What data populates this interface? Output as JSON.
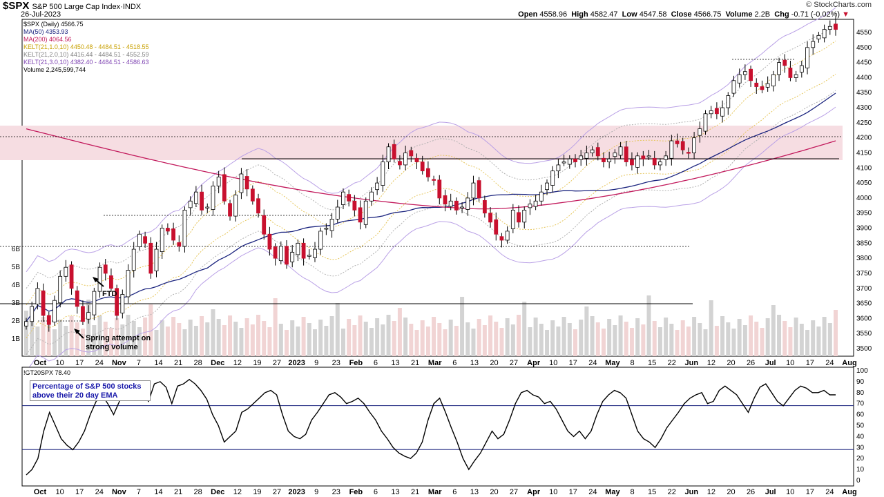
{
  "header": {
    "symbol": "$SPX",
    "name": "S&P 500 Large Cap Index",
    "exchange": "INDX",
    "date": "26-Jul-2023",
    "open_label": "Open",
    "open": "4558.96",
    "high_label": "High",
    "high": "4582.47",
    "low_label": "Low",
    "low": "4547.58",
    "close_label": "Close",
    "close": "4566.75",
    "volume_label": "Volume",
    "volume": "2.2B",
    "chg_label": "Chg",
    "chg": "-0.71 (-0.02%)",
    "credit": "© StockCharts.com"
  },
  "legend": [
    {
      "text": "$SPX (Daily) 4566.75",
      "color": "#000000"
    },
    {
      "text": "MA(50) 4353.93",
      "color": "#1a237e"
    },
    {
      "text": "MA(200) 4064.56",
      "color": "#c2185b"
    },
    {
      "text": "KELT(21,1.0,10) 4450.48 - 4484.51 - 4518.55",
      "color": "#c8a000"
    },
    {
      "text": "KELT(21,2.0,10) 4416.44 - 4484.51 - 4552.59",
      "color": "#808080"
    },
    {
      "text": "KELT(21,3.0,10) 4382.40 - 4484.51 - 4586.63",
      "color": "#7b3fb0"
    },
    {
      "text": "Volume 2,245,599,744",
      "color": "#000000"
    }
  ],
  "indicator_legend": "!GT20SPX 78.40",
  "indicator_box": "Percentage of S&P 500 stocks above their 20 day EMA",
  "annotations": {
    "ftd": "FTD",
    "spring": "Spring attempt on strong volume"
  },
  "colors": {
    "up": "#ffffff",
    "down": "#c8102e",
    "ma50": "#1a237e",
    "ma200": "#c2185b",
    "kelt1": "#e6c65c",
    "kelt2": "#b0b0b0",
    "kelt3": "#b9a0e6",
    "zone": "#f6dde2",
    "volume": "#d3d3d3",
    "volume_down": "#f1d4d4",
    "line": "#000000",
    "hline": "#1a237e"
  },
  "chart_data": [
    {
      "type": "line",
      "title": "$SPX S&P 500 Large Cap Index",
      "series": [
        {
          "name": "$SPX (Daily)",
          "summary": {
            "open": 4558.96,
            "high": 4582.47,
            "low": 4547.58,
            "close": 4566.75
          }
        },
        {
          "name": "MA(50)",
          "last": 4353.93
        },
        {
          "name": "MA(200)",
          "last": 4064.56
        }
      ],
      "y_ticks": [
        3500,
        3550,
        3600,
        3650,
        3700,
        3750,
        3800,
        3850,
        3900,
        3950,
        4000,
        4050,
        4100,
        4150,
        4200,
        4250,
        4300,
        4350,
        4400,
        4450,
        4500,
        4550
      ],
      "ylim": [
        3460,
        4600
      ],
      "volume_ticks": [
        "1B",
        "2B",
        "3B",
        "4B",
        "5B",
        "6B"
      ],
      "x_labels": [
        "Oct",
        "10",
        "17",
        "24",
        "Nov",
        "7",
        "14",
        "21",
        "28",
        "Dec",
        "12",
        "19",
        "27",
        "2023",
        "9",
        "23",
        "Feb",
        "6",
        "13",
        "21",
        "Mar",
        "6",
        "13",
        "20",
        "27",
        "Apr",
        "10",
        "17",
        "24",
        "May",
        "8",
        "15",
        "22",
        "Jun",
        "12",
        "20",
        "26",
        "Jul",
        "10",
        "17",
        "24",
        "Aug"
      ],
      "closes": [
        3590,
        3640,
        3700,
        3610,
        3580,
        3660,
        3740,
        3770,
        3700,
        3640,
        3590,
        3620,
        3690,
        3770,
        3750,
        3700,
        3610,
        3680,
        3760,
        3830,
        3880,
        3850,
        3750,
        3830,
        3900,
        3890,
        3860,
        3840,
        3960,
        3990,
        4020,
        3960,
        3970,
        4040,
        4070,
        3990,
        3940,
        4010,
        4080,
        4030,
        3990,
        3950,
        3880,
        3830,
        3800,
        3840,
        3780,
        3820,
        3850,
        3800,
        3810,
        3830,
        3890,
        3900,
        3930,
        3970,
        4020,
        3990,
        3960,
        3920,
        3990,
        4020,
        4050,
        4120,
        4170,
        4130,
        4110,
        4150,
        4140,
        4120,
        4090,
        4070,
        4060,
        4000,
        3980,
        3990,
        3960,
        3970,
        4000,
        4050,
        4000,
        3950,
        3920,
        3880,
        3860,
        3890,
        3960,
        3920,
        3960,
        3980,
        3990,
        4020,
        4050,
        4090,
        4110,
        4120,
        4130,
        4120,
        4140,
        4150,
        4160,
        4140,
        4120,
        4130,
        4150,
        4170,
        4120,
        4110,
        4140,
        4130,
        4140,
        4110,
        4120,
        4140,
        4190,
        4180,
        4160,
        4150,
        4200,
        4230,
        4280,
        4290,
        4280,
        4300,
        4340,
        4390,
        4410,
        4420,
        4390,
        4370,
        4360,
        4380,
        4410,
        4450,
        4440,
        4400,
        4410,
        4440,
        4500,
        4520,
        4540,
        4560,
        4570,
        4560
      ]
    },
    {
      "type": "line",
      "title": "Percentage of S&P 500 stocks above their 20 day EMA",
      "series": [
        {
          "name": "!GT20SPX",
          "last": 78.4
        }
      ],
      "y_ticks": [
        0,
        10,
        20,
        30,
        40,
        50,
        60,
        70,
        80,
        90,
        100
      ],
      "ylim": [
        0,
        100
      ],
      "reference_lines": [
        30,
        70
      ],
      "values": [
        5,
        10,
        20,
        45,
        62,
        50,
        38,
        32,
        28,
        35,
        45,
        60,
        72,
        78,
        70,
        60,
        72,
        85,
        90,
        80,
        78,
        72,
        88,
        90,
        85,
        70,
        86,
        88,
        92,
        88,
        82,
        74,
        60,
        50,
        35,
        40,
        45,
        62,
        65,
        70,
        75,
        80,
        82,
        78,
        60,
        45,
        40,
        38,
        42,
        55,
        62,
        70,
        78,
        80,
        76,
        70,
        72,
        75,
        70,
        62,
        55,
        45,
        38,
        30,
        25,
        22,
        20,
        25,
        35,
        55,
        70,
        75,
        62,
        48,
        35,
        20,
        10,
        18,
        25,
        35,
        45,
        38,
        42,
        55,
        70,
        80,
        82,
        78,
        76,
        70,
        72,
        65,
        55,
        45,
        40,
        45,
        38,
        45,
        60,
        72,
        78,
        82,
        80,
        75,
        60,
        45,
        38,
        35,
        30,
        38,
        48,
        55,
        62,
        70,
        75,
        78,
        80,
        70,
        72,
        82,
        86,
        82,
        78,
        70,
        62,
        75,
        85,
        88,
        80,
        72,
        68,
        75,
        82,
        86,
        84,
        80,
        80,
        82,
        78,
        78
      ]
    }
  ]
}
